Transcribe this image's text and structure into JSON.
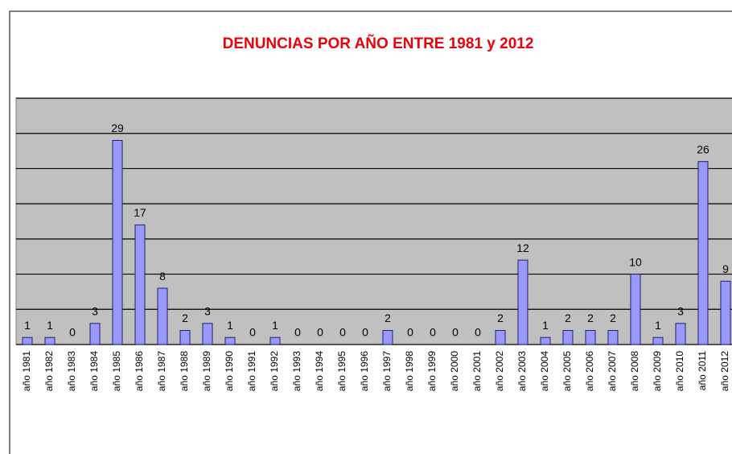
{
  "chart_data": {
    "type": "bar",
    "title": "DENUNCIAS POR AÑO ENTRE 1981 y 2012",
    "categories": [
      "año 1981",
      "año 1982",
      "año 1983",
      "año 1984",
      "año 1985",
      "año 1986",
      "año 1987",
      "año 1988",
      "año 1989",
      "año 1990",
      "año 1991",
      "año 1992",
      "año 1993",
      "año 1994",
      "año 1995",
      "año 1996",
      "año 1997",
      "año 1998",
      "año 1999",
      "año 2000",
      "año 2001",
      "año 2002",
      "año 2003",
      "año 2004",
      "año 2005",
      "año 2006",
      "año 2007",
      "año 2008",
      "año 2009",
      "año 2010",
      "año 2011",
      "año 2012"
    ],
    "values": [
      1,
      1,
      0,
      3,
      29,
      17,
      8,
      2,
      3,
      1,
      0,
      1,
      0,
      0,
      0,
      0,
      2,
      0,
      0,
      0,
      0,
      2,
      12,
      1,
      2,
      2,
      2,
      10,
      1,
      3,
      26,
      9
    ],
    "color": "#9999ff",
    "ylim": [
      0,
      35
    ],
    "yticks": [
      0,
      5,
      10,
      15,
      20,
      25,
      30,
      35
    ],
    "grid": true
  }
}
